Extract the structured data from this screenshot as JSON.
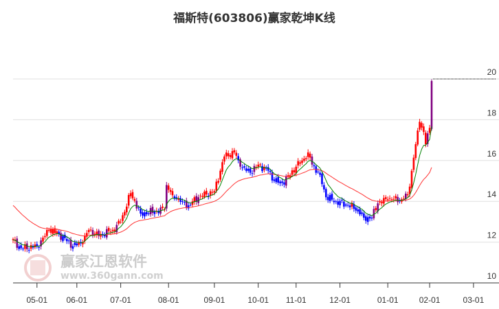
{
  "chart_data": {
    "type": "candlestick",
    "title": "福斯特(603806)赢家乾坤K线",
    "ylim": [
      10,
      20
    ],
    "yticks": [
      "10",
      "12",
      "14",
      "16",
      "18",
      "20"
    ],
    "xticks": [
      {
        "label": "05-01",
        "day": 12
      },
      {
        "label": "06-01",
        "day": 32
      },
      {
        "label": "07-01",
        "day": 54
      },
      {
        "label": "08-01",
        "day": 78
      },
      {
        "label": "09-01",
        "day": 101
      },
      {
        "label": "10-01",
        "day": 123
      },
      {
        "label": "11-01",
        "day": 142
      },
      {
        "label": "12-01",
        "day": 164
      },
      {
        "label": "01-01",
        "day": 188
      },
      {
        "label": "02-01",
        "day": 209
      },
      {
        "label": "03-01",
        "day": 231
      }
    ],
    "close_keypoints": [
      [
        0,
        12.1
      ],
      [
        4,
        11.7
      ],
      [
        12,
        11.8
      ],
      [
        16,
        12.3
      ],
      [
        18,
        12.6
      ],
      [
        23,
        12.4
      ],
      [
        30,
        11.8
      ],
      [
        35,
        12.0
      ],
      [
        38,
        12.6
      ],
      [
        43,
        12.3
      ],
      [
        50,
        12.6
      ],
      [
        54,
        13.0
      ],
      [
        59,
        14.4
      ],
      [
        64,
        13.4
      ],
      [
        71,
        13.5
      ],
      [
        76,
        13.6
      ],
      [
        77,
        14.8
      ],
      [
        80,
        14.3
      ],
      [
        85,
        14.0
      ],
      [
        88,
        13.8
      ],
      [
        93,
        14.2
      ],
      [
        101,
        14.5
      ],
      [
        106,
        16.2
      ],
      [
        111,
        16.4
      ],
      [
        114,
        15.7
      ],
      [
        119,
        15.4
      ],
      [
        123,
        15.8
      ],
      [
        128,
        15.5
      ],
      [
        131,
        15.0
      ],
      [
        135,
        14.9
      ],
      [
        138,
        15.2
      ],
      [
        142,
        15.7
      ],
      [
        145,
        16.0
      ],
      [
        148,
        16.4
      ],
      [
        150,
        15.8
      ],
      [
        154,
        15.3
      ],
      [
        157,
        14.2
      ],
      [
        162,
        14.0
      ],
      [
        168,
        13.8
      ],
      [
        173,
        13.6
      ],
      [
        176,
        13.2
      ],
      [
        180,
        13.2
      ],
      [
        183,
        13.9
      ],
      [
        188,
        14.1
      ],
      [
        195,
        14.1
      ],
      [
        198,
        14.3
      ],
      [
        200,
        15.5
      ],
      [
        202,
        16.8
      ],
      [
        204,
        17.9
      ],
      [
        206,
        17.4
      ],
      [
        207,
        16.8
      ],
      [
        209,
        17.6
      ],
      [
        210,
        19.9
      ]
    ],
    "last_price_line": 20,
    "colors": {
      "up": "#ff0000",
      "down": "#0000ff",
      "mixed": "#800080",
      "ma_short": "#008000",
      "ma_long": "#ff3333",
      "grid": "#e0e0e0"
    }
  },
  "watermark": {
    "brand": "赢家江恩软件",
    "url": "www.360gann.com",
    "seal": "江赢恩家"
  }
}
